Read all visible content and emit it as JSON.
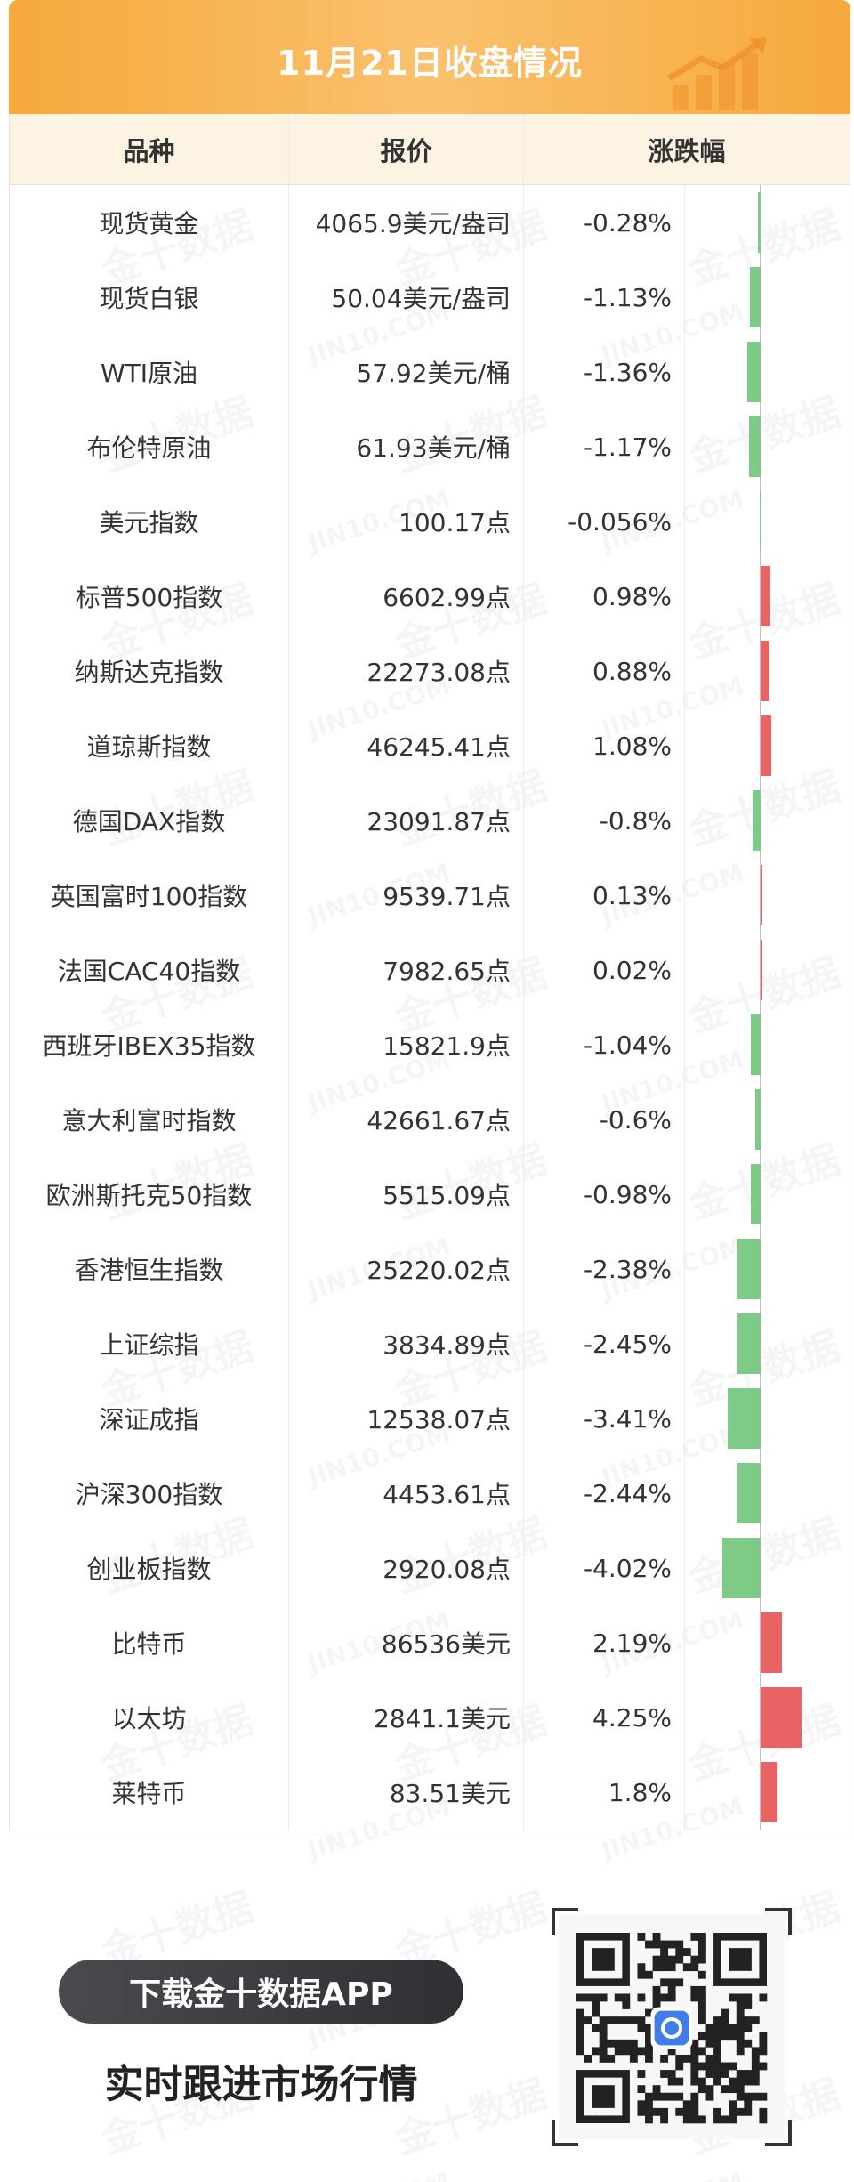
{
  "header": {
    "title": "11月21日收盘情况"
  },
  "columns": {
    "name": "品种",
    "price": "报价",
    "change": "涨跌幅"
  },
  "rows": [
    {
      "name": "现货黄金",
      "price": "4065.9美元/盎司",
      "change": "-0.28%",
      "value": -0.28
    },
    {
      "name": "现货白银",
      "price": "50.04美元/盎司",
      "change": "-1.13%",
      "value": -1.13
    },
    {
      "name": "WTI原油",
      "price": "57.92美元/桶",
      "change": "-1.36%",
      "value": -1.36
    },
    {
      "name": "布伦特原油",
      "price": "61.93美元/桶",
      "change": "-1.17%",
      "value": -1.17
    },
    {
      "name": "美元指数",
      "price": "100.17点",
      "change": "-0.056%",
      "value": -0.056
    },
    {
      "name": "标普500指数",
      "price": "6602.99点",
      "change": "0.98%",
      "value": 0.98
    },
    {
      "name": "纳斯达克指数",
      "price": "22273.08点",
      "change": "0.88%",
      "value": 0.88
    },
    {
      "name": "道琼斯指数",
      "price": "46245.41点",
      "change": "1.08%",
      "value": 1.08
    },
    {
      "name": "德国DAX指数",
      "price": "23091.87点",
      "change": "-0.8%",
      "value": -0.8
    },
    {
      "name": "英国富时100指数",
      "price": "9539.71点",
      "change": "0.13%",
      "value": 0.13
    },
    {
      "name": "法国CAC40指数",
      "price": "7982.65点",
      "change": "0.02%",
      "value": 0.02
    },
    {
      "name": "西班牙IBEX35指数",
      "price": "15821.9点",
      "change": "-1.04%",
      "value": -1.04
    },
    {
      "name": "意大利富时指数",
      "price": "42661.67点",
      "change": "-0.6%",
      "value": -0.6
    },
    {
      "name": "欧洲斯托克50指数",
      "price": "5515.09点",
      "change": "-0.98%",
      "value": -0.98
    },
    {
      "name": "香港恒生指数",
      "price": "25220.02点",
      "change": "-2.38%",
      "value": -2.38
    },
    {
      "name": "上证综指",
      "price": "3834.89点",
      "change": "-2.45%",
      "value": -2.45
    },
    {
      "name": "深证成指",
      "price": "12538.07点",
      "change": "-3.41%",
      "value": -3.41
    },
    {
      "name": "沪深300指数",
      "price": "4453.61点",
      "change": "-2.44%",
      "value": -2.44
    },
    {
      "name": "创业板指数",
      "price": "2920.08点",
      "change": "-4.02%",
      "value": -4.02
    },
    {
      "name": "比特币",
      "price": "86536美元",
      "change": "2.19%",
      "value": 2.19
    },
    {
      "name": "以太坊",
      "price": "2841.1美元",
      "change": "4.25%",
      "value": 4.25
    },
    {
      "name": "莱特币",
      "price": "83.51美元",
      "change": "1.8%",
      "value": 1.8
    }
  ],
  "colors": {
    "up": "#e86464",
    "down": "#7dcb86",
    "accent": "#f6a93b"
  },
  "footer": {
    "download": "下载金十数据APP",
    "tagline": "实时跟进市场行情",
    "qr_icon": "qr-code-icon"
  },
  "watermark": {
    "cn": "金十数据",
    "en": "JIN10.COM"
  }
}
